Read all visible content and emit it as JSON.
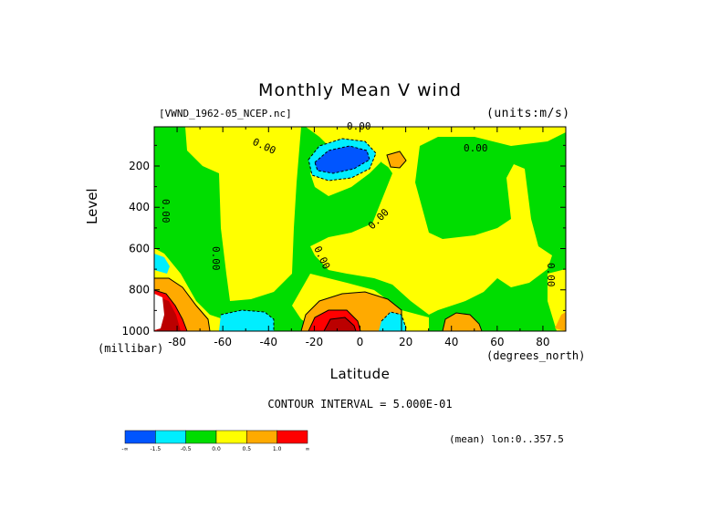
{
  "chart_data": {
    "type": "contour",
    "title": "Monthly Mean V wind",
    "dataset_label": "[VWND_1962-05_NCEP.nc]",
    "units_label": "(units:m/s)",
    "ylabel": "Level",
    "yunits": "(millibar)",
    "xlabel": "Latitude",
    "xunits": "(degrees_north)",
    "xlim": [
      -90,
      90
    ],
    "ylim": [
      1000,
      10
    ],
    "y_reversed": true,
    "xticks": [
      -80,
      -60,
      -40,
      -20,
      0,
      20,
      40,
      60,
      80
    ],
    "xtick_labels": [
      "-80",
      "-60",
      "-40",
      "-20",
      "0",
      "20",
      "40",
      "60",
      "80"
    ],
    "yticks": [
      200,
      400,
      600,
      800,
      1000
    ],
    "ytick_labels": [
      "200",
      "400",
      "600",
      "800",
      "1000"
    ],
    "contour_interval": "CONTOUR INTERVAL = 5.000E-01",
    "contour_labels": [
      "0.00",
      "0.00",
      "0.00",
      "0.00",
      "0.00",
      "0.00",
      "0.00",
      "0.00"
    ],
    "footer": "(mean) lon:0..357.5",
    "colorbar": {
      "colors": [
        "#0055ff",
        "#00eeff",
        "#00dd00",
        "#ffff00",
        "#ffaa00",
        "#ff0000"
      ],
      "labels": [
        "-∞",
        "-1.5",
        "-0.5",
        "0.0",
        "0.5",
        "1.0",
        "∞"
      ]
    },
    "grid": false
  }
}
